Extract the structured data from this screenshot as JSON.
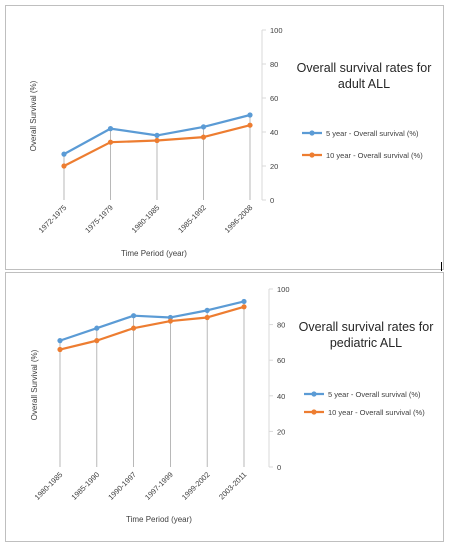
{
  "chart_data": [
    {
      "type": "line",
      "title": [
        "Overall survival rates for",
        "adult ALL"
      ],
      "xlabel": "Time Period  (year)",
      "ylabel": "Overall Survival (%)",
      "categories": [
        "1972-1975",
        "1975-1979",
        "1980-1985",
        "1985-1992",
        "1996-2008"
      ],
      "ylim": [
        0,
        100
      ],
      "yticks": [
        0,
        20,
        40,
        60,
        80,
        100
      ],
      "grid": "vertical drop lines",
      "legend": "right",
      "series": [
        {
          "name": "5 year - Overall survival (%)",
          "color": "#5B9BD5",
          "values": [
            27,
            42,
            38,
            43,
            50
          ]
        },
        {
          "name": "10 year - Overall survival (%)",
          "color": "#ED7D31",
          "values": [
            20,
            34,
            35,
            37,
            44
          ]
        }
      ]
    },
    {
      "type": "line",
      "title": [
        "Overall survival rates for",
        "pediatric ALL"
      ],
      "xlabel": "Time Period  (year)",
      "ylabel": "Overall Survival (%)",
      "categories": [
        "1980-1985",
        "1985-1990",
        "1990-1997",
        "1997-1999",
        "1999-2002",
        "2003-2011"
      ],
      "ylim": [
        0,
        100
      ],
      "yticks": [
        0,
        20,
        40,
        60,
        80,
        100
      ],
      "grid": "vertical drop lines",
      "legend": "right",
      "series": [
        {
          "name": "5 year - Overall survival (%)",
          "color": "#5B9BD5",
          "values": [
            71,
            78,
            85,
            84,
            88,
            93
          ]
        },
        {
          "name": "10 year - Overall survival (%)",
          "color": "#ED7D31",
          "values": [
            66,
            71,
            78,
            82,
            84,
            90
          ]
        }
      ]
    }
  ]
}
